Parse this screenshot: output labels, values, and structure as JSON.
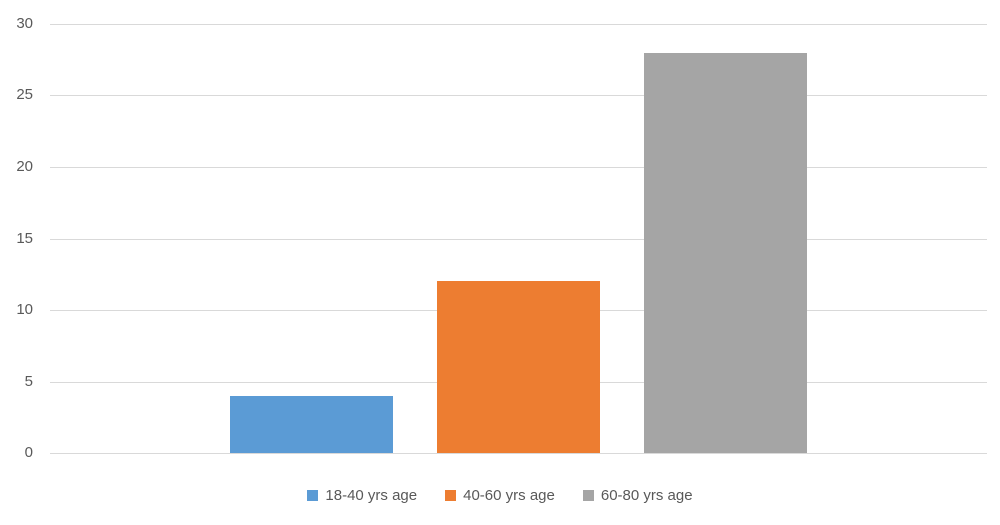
{
  "chart_data": {
    "type": "bar",
    "title": "",
    "categories": [
      ""
    ],
    "series": [
      {
        "name": "18-40 yrs age",
        "value": 4,
        "color": "#5B9BD5"
      },
      {
        "name": "40-60 yrs age",
        "value": 12,
        "color": "#ED7D31"
      },
      {
        "name": "60-80 yrs age",
        "value": 28,
        "color": "#A5A5A5"
      }
    ],
    "y_axis": {
      "min": 0,
      "max": 30,
      "tick_interval": 5,
      "ticks": [
        0,
        5,
        10,
        15,
        20,
        25,
        30
      ]
    },
    "xlabel": "",
    "ylabel": "",
    "grid": true,
    "legend_position": "bottom-center",
    "colors": {
      "gridline": "#D9D9D9",
      "axis_text": "#595959",
      "background": "#FFFFFF"
    }
  }
}
